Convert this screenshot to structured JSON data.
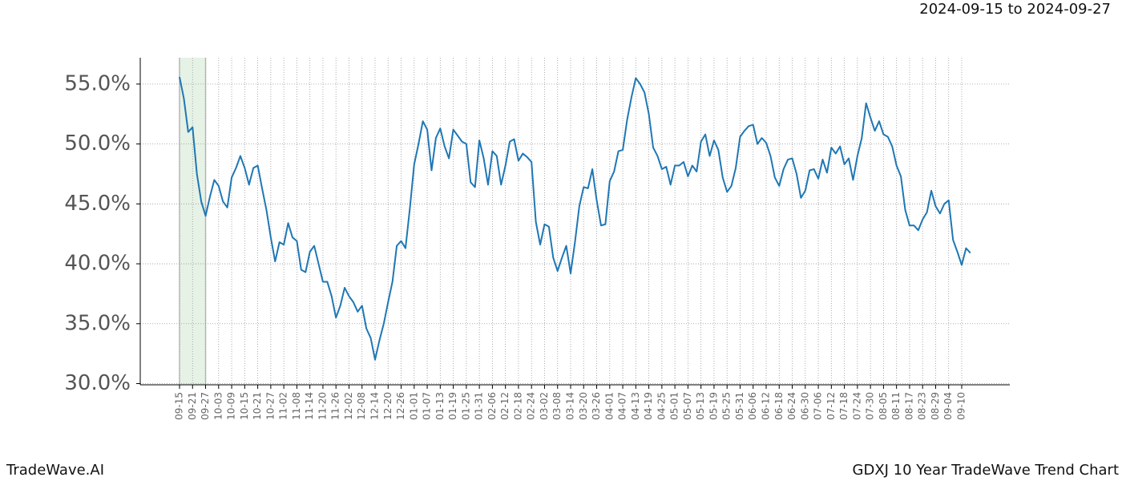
{
  "chart_data": {
    "type": "line",
    "title": "GDXJ 10 Year TradeWave Trend Chart",
    "subtitle": "2024-09-15 to 2024-09-27",
    "brand": "TradeWave.AI",
    "color": "#1f77b4",
    "highlight_color": "#e5f2e5",
    "grid": true,
    "ylim": [
      29.9,
      57.2
    ],
    "yticks": [
      {
        "value": 30,
        "label": "30.0%"
      },
      {
        "value": 35,
        "label": "35.0%"
      },
      {
        "value": 40,
        "label": "40.0%"
      },
      {
        "value": 45,
        "label": "45.0%"
      },
      {
        "value": 50,
        "label": "50.0%"
      },
      {
        "value": 55,
        "label": "55.0%"
      }
    ],
    "categories": [
      "09-15",
      null,
      null,
      "09-21",
      null,
      null,
      "09-27",
      null,
      null,
      "10-03",
      null,
      null,
      "10-09",
      null,
      null,
      "10-15",
      null,
      null,
      "10-21",
      null,
      null,
      "10-27",
      null,
      null,
      "11-02",
      null,
      null,
      "11-08",
      null,
      null,
      "11-14",
      null,
      null,
      "11-20",
      null,
      null,
      "11-26",
      null,
      null,
      "12-02",
      null,
      null,
      "12-08",
      null,
      null,
      "12-14",
      null,
      null,
      "12-20",
      null,
      null,
      "12-26",
      null,
      null,
      "01-01",
      null,
      null,
      "01-07",
      null,
      null,
      "01-13",
      null,
      null,
      "01-19",
      null,
      null,
      "01-25",
      null,
      null,
      "01-31",
      null,
      null,
      "02-06",
      null,
      null,
      "02-12",
      null,
      null,
      "02-18",
      null,
      null,
      "02-24",
      null,
      null,
      "03-02",
      null,
      null,
      "03-08",
      null,
      null,
      "03-14",
      null,
      null,
      "03-20",
      null,
      null,
      "03-26",
      null,
      null,
      "04-01",
      null,
      null,
      "04-07",
      null,
      null,
      "04-13",
      null,
      null,
      "04-19",
      null,
      null,
      "04-25",
      null,
      null,
      "05-01",
      null,
      null,
      "05-07",
      null,
      null,
      "05-13",
      null,
      null,
      "05-19",
      null,
      null,
      "05-25",
      null,
      null,
      "05-31",
      null,
      null,
      "06-06",
      null,
      null,
      "06-12",
      null,
      null,
      "06-18",
      null,
      null,
      "06-24",
      null,
      null,
      "06-30",
      null,
      null,
      "07-06",
      null,
      null,
      "07-12",
      null,
      null,
      "07-18",
      null,
      null,
      "07-24",
      null,
      null,
      "07-30",
      null,
      null,
      "08-05",
      null,
      null,
      "08-11",
      null,
      null,
      "08-17",
      null,
      null,
      "08-23",
      null,
      null,
      "08-29",
      null,
      null,
      "09-04",
      null,
      null,
      "09-10",
      null,
      null
    ],
    "values": [
      55.6,
      53.8,
      51,
      51.4,
      47.5,
      45.2,
      44.0,
      45.6,
      47,
      46.5,
      45.2,
      44.7,
      47.2,
      48,
      49,
      48,
      46.6,
      48,
      48.2,
      46.3,
      44.5,
      42.2,
      40.2,
      41.8,
      41.6,
      43.4,
      42.2,
      41.9,
      39.5,
      39.3,
      41,
      41.5,
      40,
      38.5,
      38.5,
      37.3,
      35.5,
      36.5,
      38,
      37.3,
      36.8,
      36,
      36.5,
      34.6,
      33.8,
      32,
      33.6,
      35,
      36.8,
      38.5,
      41.5,
      41.9,
      41.3,
      44.6,
      48.3,
      50,
      51.9,
      51.2,
      47.8,
      50.5,
      51.3,
      49.8,
      48.8,
      51.2,
      50.7,
      50.2,
      50,
      46.8,
      46.4,
      50.3,
      48.8,
      46.6,
      49.4,
      49,
      46.6,
      48.2,
      50.2,
      50.4,
      48.6,
      49.2,
      48.9,
      48.5,
      43.5,
      41.6,
      43.3,
      43.1,
      40.5,
      39.4,
      40.5,
      41.5,
      39.2,
      41.8,
      44.8,
      46.4,
      46.3,
      47.9,
      45.3,
      43.2,
      43.3,
      46.9,
      47.7,
      49.4,
      49.5,
      52,
      53.9,
      55.5,
      55,
      54.3,
      52.5,
      49.7,
      49,
      47.9,
      48.1,
      46.6,
      48.2,
      48.2,
      48.5,
      47.3,
      48.2,
      47.7,
      50.2,
      50.8,
      49,
      50.3,
      49.5,
      47.2,
      46,
      46.5,
      48,
      50.6,
      51.1,
      51.5,
      51.6,
      50,
      50.5,
      50.1,
      49,
      47.2,
      46.5,
      47.9,
      48.7,
      48.8,
      47.5,
      45.5,
      46.1,
      47.8,
      47.9,
      47.1,
      48.7,
      47.6,
      49.7,
      49.2,
      49.8,
      48.3,
      48.8,
      47,
      49,
      50.5,
      53.4,
      52.2,
      51.1,
      51.9,
      50.8,
      50.6,
      49.8,
      48.2,
      47.3,
      44.5,
      43.2,
      43.2,
      42.8,
      43.7,
      44.3,
      46.1,
      44.8,
      44.2,
      45,
      45.3,
      42,
      41,
      39.9,
      41.3,
      40.9
    ]
  }
}
